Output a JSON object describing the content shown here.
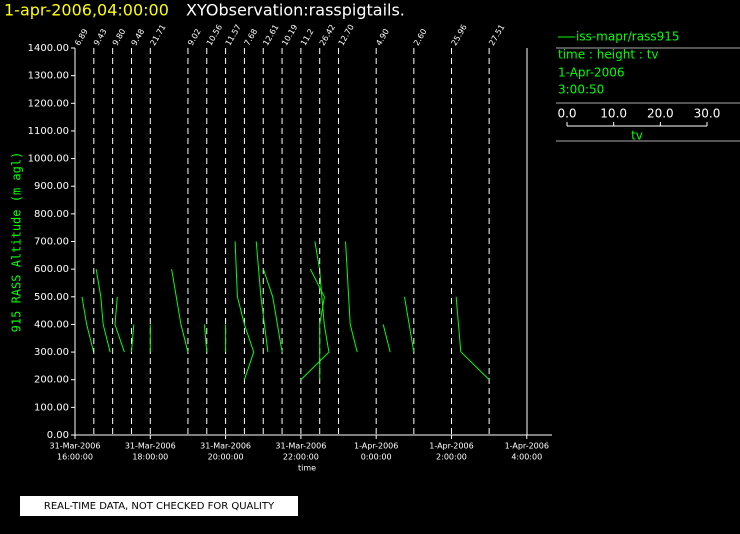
{
  "chart_data": {
    "type": "pigtail",
    "title": "1-apr-2006,04:00:00",
    "subtitle": "XYObservation:rasspigtails.",
    "xlabel": "time",
    "ylabel": "915 RASS Altitude (m agl)",
    "footer": "REAL-TIME DATA, NOT CHECKED FOR QUALITY",
    "legend_lines": [
      "time : height : tv",
      "1-Apr-2006",
      "3:00:50"
    ],
    "legend_scale": {
      "label": "tv",
      "lim": [
        0,
        30
      ],
      "ticks": [
        {
          "value": 0,
          "label": "0.0"
        },
        {
          "value": 10,
          "label": "10.0"
        },
        {
          "value": 20,
          "label": "20.0"
        },
        {
          "value": 30,
          "label": "30.0"
        }
      ]
    },
    "xlim": [
      16,
      28.67
    ],
    "xticks": [
      {
        "value": 16,
        "label": [
          "31-Mar-2006",
          "16:00:00"
        ]
      },
      {
        "value": 18,
        "label": [
          "31-Mar-2006",
          "18:00:00"
        ]
      },
      {
        "value": 20,
        "label": [
          "31-Mar-2006",
          "20:00:00"
        ]
      },
      {
        "value": 22,
        "label": [
          "31-Mar-2006",
          "22:00:00"
        ]
      },
      {
        "value": 24,
        "label": [
          "1-Apr-2006",
          "0:00:00"
        ]
      },
      {
        "value": 26,
        "label": [
          "1-Apr-2006",
          "2:00:00"
        ]
      },
      {
        "value": 28,
        "label": [
          "1-Apr-2006",
          "4:00:00"
        ]
      }
    ],
    "ylim": [
      0,
      1400
    ],
    "yticks": [
      {
        "value": 0,
        "label": "0.00"
      },
      {
        "value": 100,
        "label": "100.00"
      },
      {
        "value": 200,
        "label": "200.00"
      },
      {
        "value": 300,
        "label": "300.00"
      },
      {
        "value": 400,
        "label": "400.00"
      },
      {
        "value": 500,
        "label": "500.00"
      },
      {
        "value": 600,
        "label": "600.00"
      },
      {
        "value": 700,
        "label": "700.00"
      },
      {
        "value": 800,
        "label": "800.00"
      },
      {
        "value": 900,
        "label": "900.00"
      },
      {
        "value": 1000,
        "label": "1000.00"
      },
      {
        "value": 1100,
        "label": "1100.00"
      },
      {
        "value": 1200,
        "label": "1200.00"
      },
      {
        "value": 1300,
        "label": "1300.00"
      },
      {
        "value": 1400,
        "label": "1400.00"
      }
    ],
    "series": [
      {
        "name": "iss-mapr/rass915",
        "color": "#00ff00",
        "profiles": [
          {
            "time": 16,
            "label": 6.89,
            "heights": [
              500,
              400,
              300
            ],
            "tv": [
              1.5,
              2.5,
              4
            ]
          },
          {
            "time": 16.5,
            "label": 9.43,
            "heights": [
              600,
              500,
              400,
              300
            ],
            "tv": [
              0.5,
              1.5,
              2,
              3.5
            ]
          },
          {
            "time": 17,
            "label": {
              "value": 9.8,
              "label": "9.80"
            },
            "heights": [
              500,
              400,
              300
            ],
            "tv": [
              1,
              0.5,
              2.5
            ]
          },
          {
            "time": 17.5,
            "label": 9.48,
            "heights": [
              400,
              300
            ],
            "tv": [
              0.5,
              0
            ]
          },
          {
            "time": 18,
            "label": {
              "value": 21.71,
              "label": "21.71"
            },
            "heights": [
              400,
              300
            ],
            "tv": [
              0,
              0
            ]
          },
          {
            "time": 19,
            "label": 9.02,
            "heights": [
              600,
              400,
              300
            ],
            "tv": [
              -3.5,
              -1.5,
              0
            ]
          },
          {
            "time": 19.5,
            "label": 10.56,
            "heights": [
              400,
              300
            ],
            "tv": [
              -0.5,
              0
            ]
          },
          {
            "time": 20,
            "label": 11.57,
            "heights": [
              400,
              300
            ],
            "tv": [
              0,
              0
            ]
          },
          {
            "time": 20.5,
            "label": 7.68,
            "heights": [
              700,
              500,
              400,
              300,
              200
            ],
            "tv": [
              -2,
              -1.5,
              0,
              2,
              0
            ]
          },
          {
            "time": 21,
            "label": 12.61,
            "heights": [
              700,
              500,
              300
            ],
            "tv": [
              -1.5,
              -0.5,
              1
            ]
          },
          {
            "time": 21.5,
            "label": 10.19,
            "heights": [
              600,
              500,
              300
            ],
            "tv": [
              -4,
              -2,
              0
            ]
          },
          {
            "time": 22,
            "label": 11.2,
            "heights": [
              700,
              600,
              400,
              300,
              200
            ],
            "tv": [
              3,
              4,
              5,
              6,
              0
            ]
          },
          {
            "time": 22.5,
            "label": 26.42,
            "heights": [
              600,
              500,
              400,
              200
            ],
            "tv": [
              -2,
              1,
              0,
              0
            ]
          },
          {
            "time": 23,
            "label": {
              "value": 12.7,
              "label": "12.70"
            },
            "heights": [
              700,
              400,
              300
            ],
            "tv": [
              1.5,
              2.5,
              4
            ]
          },
          {
            "time": 24,
            "label": {
              "value": 4.9,
              "label": "4.90"
            },
            "heights": [
              400,
              300
            ],
            "tv": [
              1.5,
              3
            ]
          },
          {
            "time": 25,
            "label": {
              "value": 2.6,
              "label": "2.60"
            },
            "heights": [
              500,
              400,
              300
            ],
            "tv": [
              -2,
              -1,
              0
            ]
          },
          {
            "time": 26,
            "label": 25.96,
            "heights": [
              500,
              400,
              300
            ],
            "tv": [
              1,
              1.5,
              2
            ]
          },
          {
            "time": 27,
            "label": 27.51,
            "heights": [
              300,
              200
            ],
            "tv": [
              -6,
              0
            ]
          }
        ]
      }
    ]
  }
}
